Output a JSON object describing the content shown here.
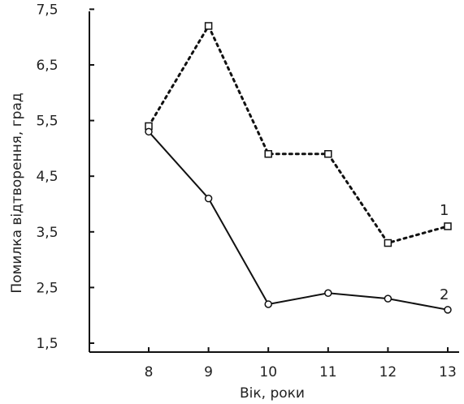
{
  "chart_data": {
    "type": "line",
    "xlabel": "Вік, роки",
    "ylabel": "Помилка відтворення, град",
    "x": [
      8,
      9,
      10,
      11,
      12,
      13
    ],
    "x_tick_labels": [
      "8",
      "9",
      "10",
      "11",
      "12",
      "13"
    ],
    "y_tick_labels": [
      "1,5",
      "2,5",
      "3,5",
      "4,5",
      "5,5",
      "6,5",
      "7,5"
    ],
    "y_ticks": [
      1.5,
      2.5,
      3.5,
      4.5,
      5.5,
      6.5,
      7.5
    ],
    "ylim": [
      1.5,
      7.5
    ],
    "xlim": [
      7,
      13
    ],
    "grid": false,
    "series": [
      {
        "name": "1",
        "line_style": "dotted",
        "marker": "square",
        "color": "#111111",
        "values": [
          5.4,
          7.2,
          4.9,
          4.9,
          3.3,
          3.6
        ]
      },
      {
        "name": "2",
        "line_style": "solid",
        "marker": "circle",
        "color": "#111111",
        "values": [
          5.3,
          4.1,
          2.2,
          2.4,
          2.3,
          2.1
        ]
      }
    ]
  }
}
